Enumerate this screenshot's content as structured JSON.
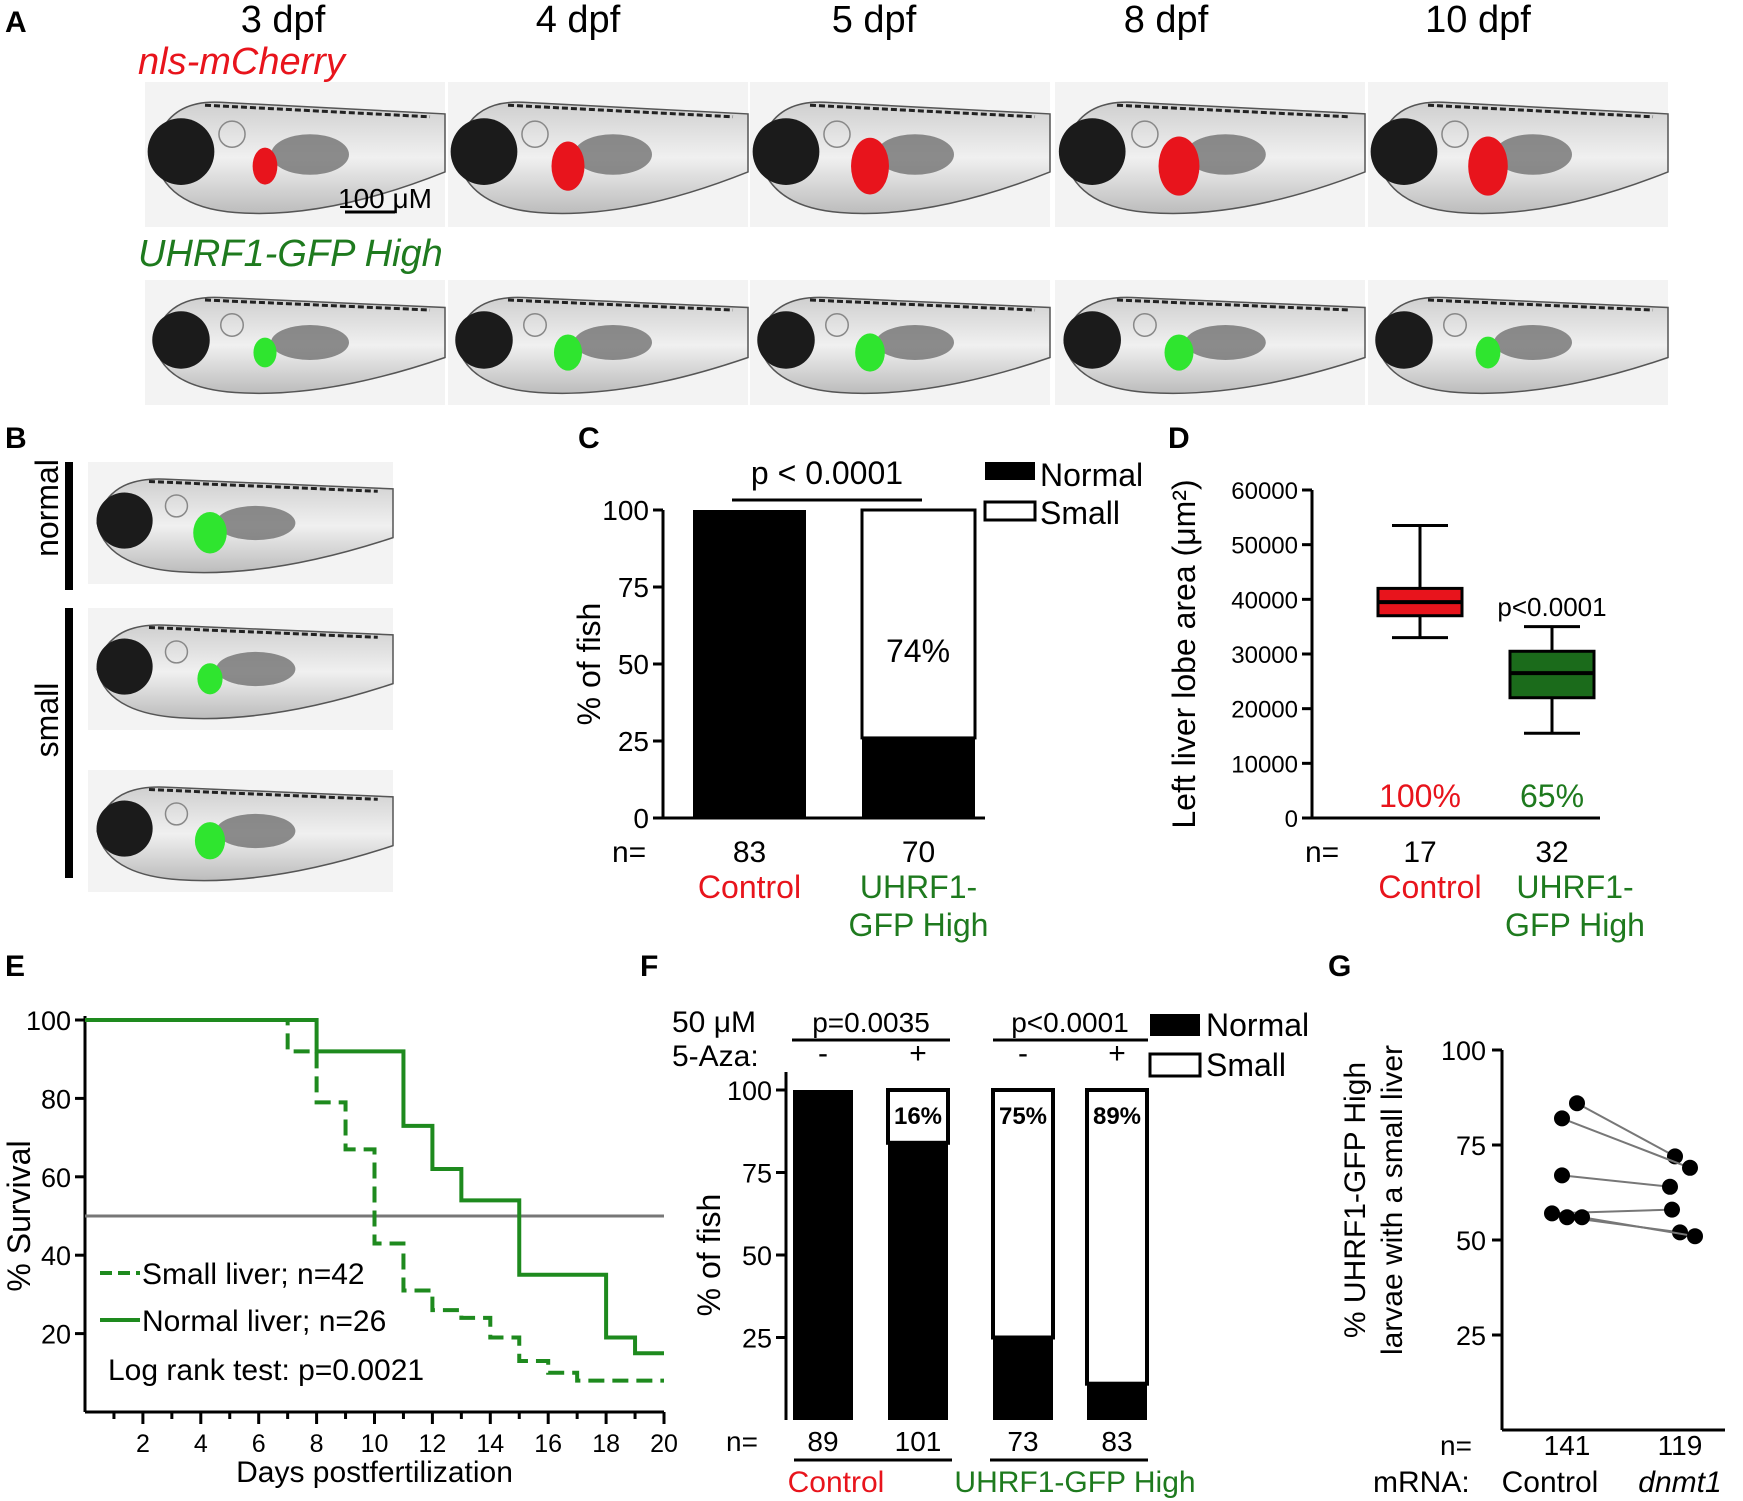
{
  "panel_a": {
    "letter": "A",
    "stages": [
      "3 dpf",
      "4 dpf",
      "5 dpf",
      "8 dpf",
      "10 dpf"
    ],
    "row1_label": "nls-mCherry",
    "row2_label": "UHRF1-GFP High",
    "scalebar": "100 μM",
    "colors": {
      "red": "#e8141c",
      "green": "#1e7a1e",
      "liver_green": "#2fe52f"
    }
  },
  "panel_b": {
    "letter": "B",
    "label_normal": "normal",
    "label_small": "small"
  },
  "panel_c": {
    "letter": "C",
    "pvalue": "p < 0.0001",
    "legend": [
      "Normal",
      "Small"
    ],
    "ylabel": "% of fish",
    "yticks": [
      "0",
      "25",
      "50",
      "75",
      "100"
    ],
    "n_label": "n=",
    "inner_label": "74%",
    "groups": [
      {
        "n": "83",
        "label": "Control",
        "color": "#e8141c"
      },
      {
        "n": "70",
        "label": "UHRF1-\nGFP High",
        "color": "#1e7a1e"
      }
    ]
  },
  "panel_d": {
    "letter": "D",
    "ylabel": "Left liver lobe area (μm²)",
    "yticks": [
      "0",
      "10000",
      "20000",
      "30000",
      "40000",
      "50000",
      "60000"
    ],
    "pvalue": "p<0.0001",
    "n_label": "n=",
    "groups": [
      {
        "n": "17",
        "label": "Control",
        "pct": "100%",
        "color": "#e8141c"
      },
      {
        "n": "32",
        "label": "UHRF1-\nGFP High",
        "pct": "65%",
        "color": "#1e7a1e"
      }
    ]
  },
  "panel_e": {
    "letter": "E",
    "ylabel": "% Survival",
    "xlabel": "Days postfertilization",
    "yticks": [
      "20",
      "40",
      "60",
      "80",
      "100"
    ],
    "xticks": [
      "2",
      "4",
      "6",
      "8",
      "10",
      "12",
      "14",
      "16",
      "18",
      "20"
    ],
    "legend_small": "Small liver; n=42",
    "legend_normal": "Normal liver; n=26",
    "test": "Log rank test: p=0.0021"
  },
  "panel_f": {
    "letter": "F",
    "dose": "50 μM",
    "drug": "5-Aza:",
    "p1": "p=0.0035",
    "p2": "p<0.0001",
    "signs": [
      "-",
      "+",
      "-",
      "+"
    ],
    "legend": [
      "Normal",
      "Small"
    ],
    "ylabel": "% of fish",
    "yticks": [
      "25",
      "50",
      "75",
      "100"
    ],
    "n_label": "n=",
    "ns": [
      "89",
      "101",
      "73",
      "83"
    ],
    "pcts": [
      "",
      "16%",
      "75%",
      "89%"
    ],
    "group1": "Control",
    "group2": "UHRF1-GFP High"
  },
  "panel_g": {
    "letter": "G",
    "ylabel1": "% UHRF1-GFP High",
    "ylabel2": "larvae with a small liver",
    "yticks": [
      "25",
      "50",
      "75",
      "100"
    ],
    "n_label": "n=",
    "mrna_label": "mRNA:",
    "groups": [
      {
        "n": "141",
        "label": "Control"
      },
      {
        "n": "119",
        "label": "dnmt1"
      }
    ]
  },
  "chart_data": [
    {
      "panel": "C",
      "type": "bar",
      "stacked": true,
      "categories": [
        "Control",
        "UHRF1-GFP High"
      ],
      "series": [
        {
          "name": "Normal",
          "values": [
            100,
            26
          ]
        },
        {
          "name": "Small",
          "values": [
            0,
            74
          ]
        }
      ],
      "ylabel": "% of fish",
      "ylim": [
        0,
        100
      ]
    },
    {
      "panel": "D",
      "type": "box",
      "categories": [
        "Control",
        "UHRF1-GFP High"
      ],
      "boxes": [
        {
          "min": 33000,
          "q1": 37000,
          "median": 39500,
          "q3": 42000,
          "max": 53500
        },
        {
          "min": 15500,
          "q1": 22000,
          "median": 26500,
          "q3": 30500,
          "max": 35000
        }
      ],
      "ylabel": "Left liver lobe area (μm²)",
      "ylim": [
        0,
        60000
      ]
    },
    {
      "panel": "E",
      "type": "line",
      "step": true,
      "series": [
        {
          "name": "Small liver; n=42",
          "x": [
            0,
            7,
            8,
            9,
            10,
            11,
            12,
            13,
            14,
            15,
            16,
            17,
            20
          ],
          "y": [
            100,
            92,
            79,
            67,
            43,
            31,
            26,
            24,
            19,
            13,
            10,
            8,
            8
          ]
        },
        {
          "name": "Normal liver; n=26",
          "x": [
            0,
            8,
            11,
            12,
            13,
            15,
            18,
            19,
            20
          ],
          "y": [
            100,
            92,
            73,
            62,
            54,
            35,
            19,
            15,
            15
          ]
        }
      ],
      "reference_line": 50,
      "xlabel": "Days postfertilization",
      "ylabel": "% Survival",
      "xlim": [
        0,
        20
      ],
      "ylim": [
        0,
        100
      ]
    },
    {
      "panel": "F",
      "type": "bar",
      "stacked": true,
      "categories": [
        "Control -",
        "Control +",
        "UHRF1-GFP High -",
        "UHRF1-GFP High +"
      ],
      "series": [
        {
          "name": "Normal",
          "values": [
            100,
            84,
            25,
            11
          ]
        },
        {
          "name": "Small",
          "values": [
            0,
            16,
            75,
            89
          ]
        }
      ],
      "ylabel": "% of fish",
      "ylim": [
        0,
        100
      ]
    },
    {
      "panel": "G",
      "type": "scatter",
      "paired": true,
      "categories": [
        "Control",
        "dnmt1"
      ],
      "pairs": [
        [
          86,
          72
        ],
        [
          82,
          69
        ],
        [
          67,
          64
        ],
        [
          57,
          58
        ],
        [
          56,
          52
        ],
        [
          56,
          51
        ]
      ],
      "ylabel": "% UHRF1-GFP High larvae with a small liver",
      "ylim": [
        0,
        100
      ]
    }
  ]
}
